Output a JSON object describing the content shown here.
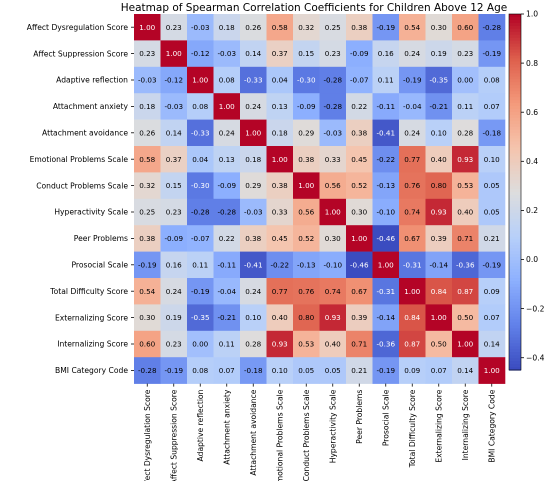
{
  "chart_data": {
    "type": "heatmap",
    "title": "Heatmap of Spearman Correlation Coefficients for Children Above 12 Age",
    "labels": [
      "Affect Dysregulation Score",
      "Affect Suppression Score",
      "Adaptive reflection",
      "Attachment anxiety",
      "Attachment avoidance",
      "Emotional Problems Scale",
      "Conduct Problems Scale",
      "Hyperactivity Scale",
      "Peer Problems",
      "Prosocial Scale",
      "Total Difficulty Score",
      "Externalizing Score",
      "Internalizing Score",
      "BMI Category Code"
    ],
    "values": [
      [
        1.0,
        0.23,
        -0.03,
        0.18,
        0.26,
        0.58,
        0.32,
        0.25,
        0.38,
        -0.19,
        0.54,
        0.3,
        0.6,
        -0.28
      ],
      [
        0.23,
        1.0,
        -0.12,
        -0.03,
        0.14,
        0.37,
        0.15,
        0.23,
        -0.09,
        0.16,
        0.24,
        0.19,
        0.23,
        -0.19
      ],
      [
        -0.03,
        -0.12,
        1.0,
        0.08,
        -0.33,
        0.04,
        -0.3,
        -0.28,
        -0.07,
        0.11,
        -0.19,
        -0.35,
        -0.0,
        0.08
      ],
      [
        0.18,
        -0.03,
        0.08,
        1.0,
        0.24,
        0.13,
        -0.09,
        -0.28,
        0.22,
        -0.11,
        -0.04,
        -0.21,
        0.11,
        0.07
      ],
      [
        0.26,
        0.14,
        -0.33,
        0.24,
        1.0,
        0.18,
        0.29,
        -0.03,
        0.38,
        -0.41,
        0.24,
        0.1,
        0.28,
        -0.18
      ],
      [
        0.58,
        0.37,
        0.04,
        0.13,
        0.18,
        1.0,
        0.38,
        0.33,
        0.45,
        -0.22,
        0.77,
        0.4,
        0.93,
        0.1
      ],
      [
        0.32,
        0.15,
        -0.3,
        -0.09,
        0.29,
        0.38,
        1.0,
        0.56,
        0.52,
        -0.13,
        0.76,
        0.8,
        0.53,
        0.05
      ],
      [
        0.25,
        0.23,
        -0.28,
        -0.28,
        -0.03,
        0.33,
        0.56,
        1.0,
        0.3,
        -0.1,
        0.74,
        0.93,
        0.4,
        0.05
      ],
      [
        0.38,
        -0.09,
        -0.07,
        0.22,
        0.38,
        0.45,
        0.52,
        0.3,
        1.0,
        -0.46,
        0.67,
        0.39,
        0.71,
        0.21
      ],
      [
        -0.19,
        0.16,
        0.11,
        -0.11,
        -0.41,
        -0.22,
        -0.13,
        -0.1,
        -0.46,
        1.0,
        -0.31,
        -0.14,
        -0.36,
        -0.19
      ],
      [
        0.54,
        0.24,
        -0.19,
        -0.04,
        0.24,
        0.77,
        0.76,
        0.74,
        0.67,
        -0.31,
        1.0,
        0.84,
        0.87,
        0.09
      ],
      [
        0.3,
        0.19,
        -0.35,
        -0.21,
        0.1,
        0.4,
        0.8,
        0.93,
        0.39,
        -0.14,
        0.84,
        1.0,
        0.5,
        0.07
      ],
      [
        0.6,
        0.23,
        -0.0,
        0.11,
        0.28,
        0.93,
        0.53,
        0.4,
        0.71,
        -0.36,
        0.87,
        0.5,
        1.0,
        0.14
      ],
      [
        -0.28,
        -0.19,
        0.08,
        0.07,
        -0.18,
        0.1,
        0.05,
        0.05,
        0.21,
        -0.19,
        0.09,
        0.07,
        0.14,
        1.0
      ]
    ],
    "value_format": "2 decimals",
    "colormap": "coolwarm",
    "color_range": [
      -0.45,
      1.0
    ],
    "colorbar_ticks": [
      "1.0",
      "0.8",
      "0.6",
      "0.4",
      "0.2",
      "0.0",
      "−0.2",
      "−0.4"
    ],
    "colorbar_values": [
      1.0,
      0.8,
      0.6,
      0.4,
      0.2,
      0.0,
      -0.2,
      -0.4
    ],
    "annotated": true,
    "grid": false
  }
}
